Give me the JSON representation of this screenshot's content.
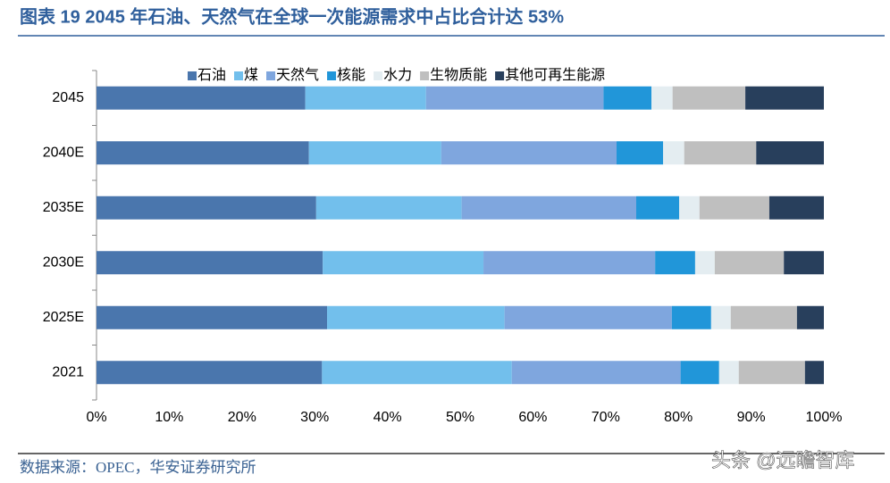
{
  "chart_data": {
    "type": "stacked-barh",
    "title": "图表 19 2045 年石油、天然气在全球一次能源需求中占比合计达 53%",
    "source": "数据来源：OPEC，华安证券研究所",
    "watermark": "头条 @远瞻智库",
    "categories": [
      "2045",
      "2040E",
      "2035E",
      "2030E",
      "2025E",
      "2021"
    ],
    "series": [
      {
        "name": "石油",
        "color": "#4a76ad",
        "values": [
          28.7,
          29.2,
          30.2,
          31.1,
          31.7,
          31.0
        ]
      },
      {
        "name": "煤",
        "color": "#72bfec",
        "values": [
          16.6,
          18.2,
          20.0,
          22.1,
          24.4,
          26.1
        ]
      },
      {
        "name": "天然气",
        "color": "#7fa6de",
        "values": [
          24.4,
          24.1,
          24.0,
          23.6,
          23.0,
          23.2
        ]
      },
      {
        "name": "核能",
        "color": "#2196d9",
        "values": [
          6.6,
          6.4,
          5.9,
          5.5,
          5.4,
          5.3
        ]
      },
      {
        "name": "水力",
        "color": "#e4edf1",
        "values": [
          2.9,
          2.9,
          2.8,
          2.7,
          2.7,
          2.7
        ]
      },
      {
        "name": "生物质能",
        "color": "#bfbfbf",
        "values": [
          10.0,
          9.9,
          9.6,
          9.5,
          9.1,
          9.1
        ]
      },
      {
        "name": "其他可再生能源",
        "color": "#283f5c",
        "values": [
          10.8,
          9.3,
          7.5,
          5.5,
          3.7,
          2.6
        ]
      }
    ],
    "xlim": [
      0,
      100
    ],
    "xticks": [
      {
        "value": 0,
        "label": "0%"
      },
      {
        "value": 10,
        "label": "10%"
      },
      {
        "value": 20,
        "label": "20%"
      },
      {
        "value": 30,
        "label": "30%"
      },
      {
        "value": 40,
        "label": "40%"
      },
      {
        "value": 50,
        "label": "50%"
      },
      {
        "value": 60,
        "label": "60%"
      },
      {
        "value": 70,
        "label": "70%"
      },
      {
        "value": 80,
        "label": "80%"
      },
      {
        "value": 90,
        "label": "90%"
      },
      {
        "value": 100,
        "label": "100%"
      }
    ],
    "legend": "top",
    "grid": false
  }
}
